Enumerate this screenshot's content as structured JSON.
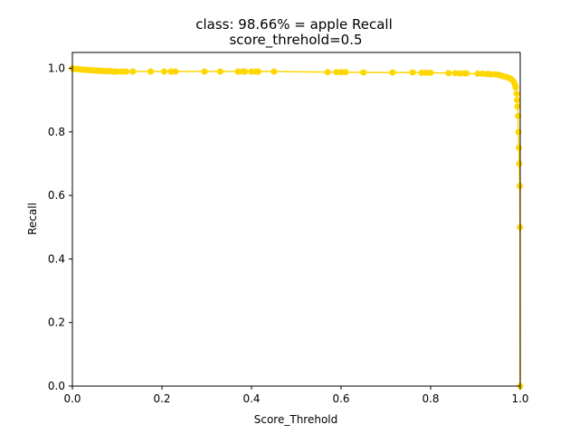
{
  "chart_data": {
    "type": "line",
    "title": "class: 98.66% = apple Recall",
    "subtitle": "score_threhold=0.5",
    "xlabel": "Score_Threhold",
    "ylabel": "Recall",
    "xlim": [
      0.0,
      1.0
    ],
    "ylim": [
      0.0,
      1.05
    ],
    "x_ticks": [
      "0.0",
      "0.2",
      "0.4",
      "0.6",
      "0.8",
      "1.0"
    ],
    "y_ticks": [
      "0.0",
      "0.2",
      "0.4",
      "0.6",
      "0.8",
      "1.0"
    ],
    "grid": false,
    "series": [
      {
        "color": "#FFD700",
        "x": [
          0.0,
          0.005,
          0.01,
          0.015,
          0.02,
          0.025,
          0.03,
          0.035,
          0.04,
          0.045,
          0.05,
          0.055,
          0.06,
          0.065,
          0.07,
          0.075,
          0.08,
          0.085,
          0.09,
          0.095,
          0.1,
          0.11,
          0.12,
          0.135,
          0.175,
          0.205,
          0.22,
          0.23,
          0.295,
          0.33,
          0.37,
          0.38,
          0.385,
          0.4,
          0.41,
          0.415,
          0.45,
          0.57,
          0.59,
          0.6,
          0.61,
          0.65,
          0.715,
          0.76,
          0.78,
          0.79,
          0.8,
          0.84,
          0.855,
          0.865,
          0.875,
          0.88,
          0.905,
          0.915,
          0.925,
          0.93,
          0.935,
          0.945,
          0.95,
          0.955,
          0.96,
          0.965,
          0.97,
          0.975,
          0.98,
          0.983,
          0.986,
          0.988,
          0.99,
          0.992,
          0.993,
          0.994,
          0.995,
          0.996,
          0.997,
          0.998,
          0.999,
          0.9995,
          1.0
        ],
        "y": [
          1.0,
          0.998,
          0.998,
          0.997,
          0.996,
          0.996,
          0.995,
          0.995,
          0.994,
          0.994,
          0.993,
          0.993,
          0.992,
          0.992,
          0.992,
          0.991,
          0.991,
          0.991,
          0.99,
          0.99,
          0.99,
          0.99,
          0.99,
          0.99,
          0.99,
          0.99,
          0.99,
          0.99,
          0.99,
          0.99,
          0.99,
          0.99,
          0.99,
          0.99,
          0.99,
          0.99,
          0.99,
          0.988,
          0.988,
          0.988,
          0.988,
          0.987,
          0.987,
          0.987,
          0.986,
          0.986,
          0.986,
          0.985,
          0.985,
          0.984,
          0.984,
          0.984,
          0.983,
          0.983,
          0.982,
          0.982,
          0.981,
          0.981,
          0.98,
          0.978,
          0.976,
          0.974,
          0.972,
          0.97,
          0.966,
          0.962,
          0.957,
          0.95,
          0.94,
          0.92,
          0.9,
          0.88,
          0.85,
          0.8,
          0.75,
          0.7,
          0.63,
          0.5,
          0.0
        ]
      }
    ]
  }
}
